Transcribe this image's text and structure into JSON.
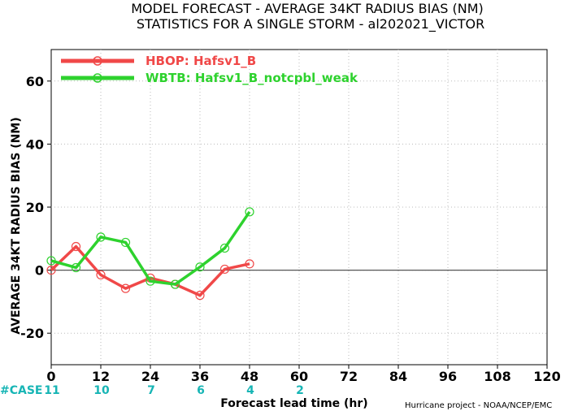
{
  "title_line1": "MODEL FORECAST - AVERAGE 34KT RADIUS BIAS (NM)",
  "title_line2": "STATISTICS FOR A SINGLE STORM - al202021_VICTOR",
  "credit": "Hurricane project - NOAA/NCEP/EMC",
  "case_label": "#CASE",
  "colors": {
    "case_text": "#17b5b5",
    "zero_line": "#555555",
    "grid": "#bbbbbb"
  },
  "chart_data": {
    "type": "line",
    "title": "MODEL FORECAST - AVERAGE 34KT RADIUS BIAS (NM)",
    "subtitle": "STATISTICS FOR A SINGLE STORM - al202021_VICTOR",
    "xlabel": "Forecast lead time (hr)",
    "ylabel": "AVERAGE 34KT RADIUS BIAS (NM)",
    "xlim": [
      0,
      120
    ],
    "ylim": [
      -30,
      70
    ],
    "x_ticks": [
      0,
      12,
      24,
      36,
      48,
      60,
      72,
      84,
      96,
      108,
      120
    ],
    "y_ticks": [
      -20,
      0,
      20,
      40,
      60
    ],
    "grid": true,
    "legend_position": "top-left",
    "cases": [
      {
        "x": 0,
        "label": "11"
      },
      {
        "x": 12,
        "label": "10"
      },
      {
        "x": 24,
        "label": "7"
      },
      {
        "x": 36,
        "label": "6"
      },
      {
        "x": 48,
        "label": "4"
      },
      {
        "x": 60,
        "label": "2"
      }
    ],
    "series": [
      {
        "name": "HBOP: Hafsv1_B",
        "color": "#f04848",
        "x": [
          0,
          6,
          12,
          18,
          24,
          30,
          36,
          42,
          48
        ],
        "y": [
          0,
          7.5,
          -1.5,
          -5.8,
          -2.5,
          -4.5,
          -8,
          0.3,
          2
        ]
      },
      {
        "name": "WBTB: Hafsv1_B_notcpbl_weak",
        "color": "#2ed22e",
        "x": [
          0,
          6,
          12,
          18,
          24,
          30,
          36,
          42,
          48
        ],
        "y": [
          3,
          0.8,
          10.5,
          8.8,
          -3.5,
          -4.5,
          1,
          7,
          18.5
        ]
      }
    ]
  }
}
